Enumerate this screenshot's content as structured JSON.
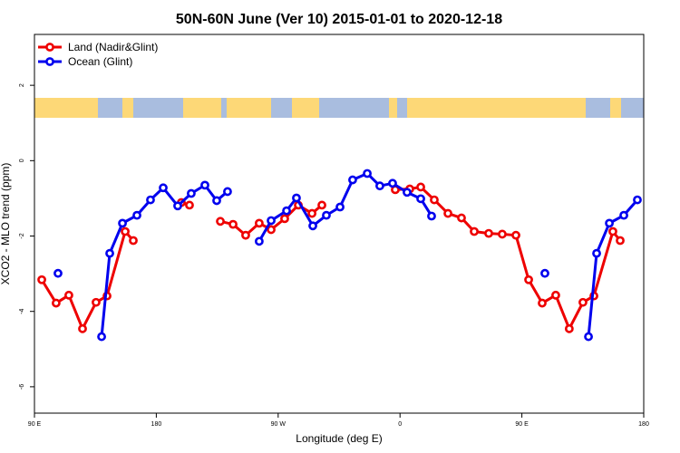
{
  "chart_data": {
    "type": "line",
    "title": "50N-60N June (Ver 10)   2015-01-01 to 2020-12-18",
    "xlabel": "Longitude (deg E)",
    "ylabel": "XCO2 - MLO trend (ppm)",
    "xlim": [
      90,
      540
    ],
    "ylim": [
      -6.7,
      3.35
    ],
    "xticks": [
      {
        "value": 90,
        "label": "90 E"
      },
      180,
      {
        "value": 270,
        "label": "90 W"
      },
      {
        "value": 360,
        "label": "0"
      },
      {
        "value": 450,
        "label": "90 E"
      },
      {
        "value": 540,
        "label": "180"
      }
    ],
    "yticks": [
      2,
      0,
      -2,
      -4,
      -6
    ],
    "legend": "top-left",
    "series": [
      {
        "name": "Land (Nadir&Glint)",
        "color": "#ee0000",
        "x": [
          95.4,
          106,
          115.4,
          125.5,
          135.5,
          143.6,
          157,
          163,
          null,
          198.5,
          204.5,
          null,
          227.3,
          236.7,
          246,
          256,
          264.8,
          274.8,
          284.9,
          295,
          302.3,
          null,
          356.5,
          367.2,
          375.3,
          385.3,
          395.4,
          405.4,
          414.8,
          425.5,
          435.5,
          445.6,
          455,
          465,
          475,
          485,
          495.1,
          503.2,
          517.2,
          522.6
        ],
        "values": [
          -3.16,
          -3.78,
          -3.57,
          -4.46,
          -3.76,
          -3.59,
          -1.88,
          -2.12,
          null,
          -1.11,
          -1.18,
          null,
          -1.61,
          -1.69,
          -1.98,
          -1.66,
          -1.83,
          -1.54,
          -1.18,
          -1.4,
          -1.18,
          null,
          -0.77,
          -0.75,
          -0.7,
          -1.04,
          -1.4,
          -1.52,
          -1.88,
          -1.93,
          -1.95,
          -1.98,
          -3.16,
          -3.78,
          -3.57,
          -4.46,
          -3.76,
          -3.59,
          -1.88,
          -2.12
        ]
      },
      {
        "name": "Ocean (Glint)",
        "color": "#0000ee",
        "x": [
          107.4,
          null,
          139.6,
          145.6,
          155,
          165.7,
          175.7,
          185.1,
          195.8,
          205.8,
          215.9,
          224.6,
          232.6,
          null,
          256,
          264.8,
          276.2,
          283.5,
          295.6,
          305.6,
          315.7,
          325,
          335.8,
          345.1,
          354.5,
          365.2,
          375.3,
          383.3,
          null,
          467,
          null,
          499.2,
          505.2,
          514.6,
          525.3,
          535.3
        ],
        "values": [
          -2.99,
          null,
          -4.67,
          -2.46,
          -1.66,
          -1.45,
          -1.04,
          -0.72,
          -1.2,
          -0.87,
          -0.65,
          -1.06,
          -0.82,
          null,
          -2.14,
          -1.59,
          -1.33,
          -0.99,
          -1.73,
          -1.45,
          -1.23,
          -0.51,
          -0.34,
          -0.67,
          -0.6,
          -0.84,
          -1.01,
          -1.47,
          null,
          -2.99,
          null,
          -4.67,
          -2.46,
          -1.66,
          -1.45,
          -1.04
        ]
      }
    ]
  }
}
